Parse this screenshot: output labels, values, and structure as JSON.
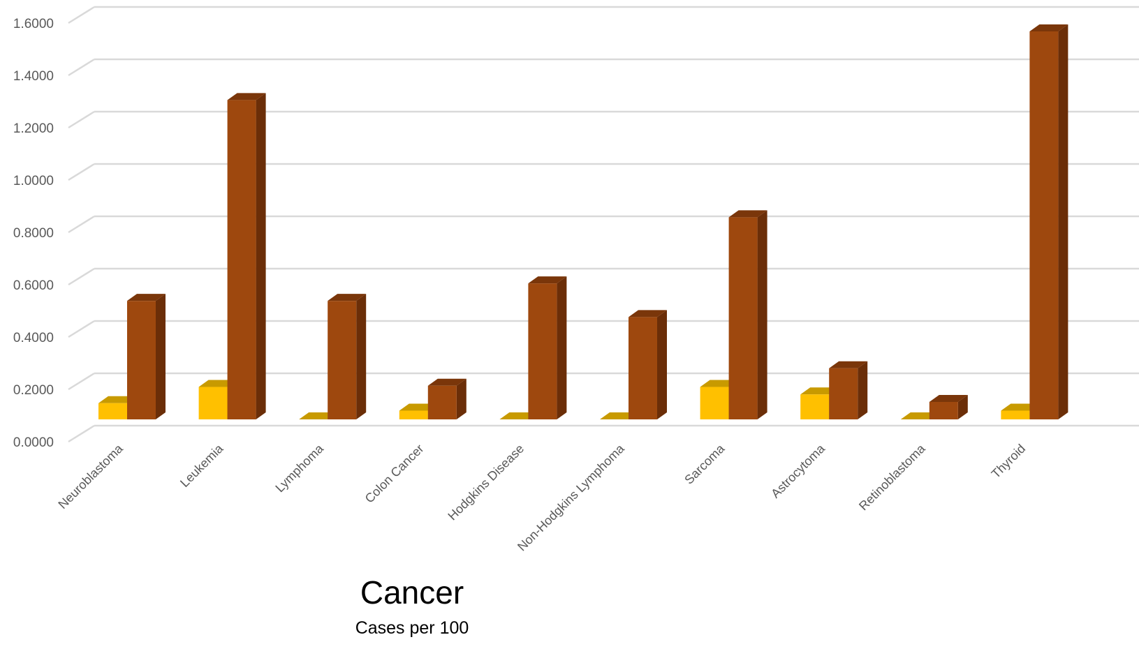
{
  "chart_data": {
    "type": "bar",
    "style": "3d-clustered-column",
    "title": "Cancer",
    "subtitle": "Cases per 100",
    "categories": [
      "Neuroblastoma",
      "Leukemia",
      "Lymphoma",
      "Colon Cancer",
      "Hodgkins Disease",
      "Non-Hodgkins Lymphoma",
      "Sarcoma",
      "Astrocytoma",
      "Retinoblastoma",
      "Thyroid"
    ],
    "series": [
      {
        "values": [
          0.065,
          0.13,
          0.0,
          0.035,
          0.0,
          0.0,
          0.13,
          0.1,
          0.0,
          0.035
        ]
      },
      {
        "values": [
          0.475,
          1.28,
          0.475,
          0.135,
          0.545,
          0.41,
          0.81,
          0.205,
          0.07,
          1.555
        ]
      }
    ],
    "y_ticks": [
      "0.0000",
      "0.2000",
      "0.4000",
      "0.6000",
      "0.8000",
      "1.0000",
      "1.2000",
      "1.4000",
      "1.6000"
    ],
    "ylim": [
      0,
      1.6
    ],
    "grid": true,
    "colors": {
      "series1_front": "#FFC000",
      "series1_top": "#C89A00",
      "series1_side": "#A67F00",
      "series2_front": "#9E480E",
      "series2_top": "#7A360A",
      "series2_side": "#6B2E08",
      "grid": "#D9D9D9",
      "text": "#595959"
    }
  }
}
